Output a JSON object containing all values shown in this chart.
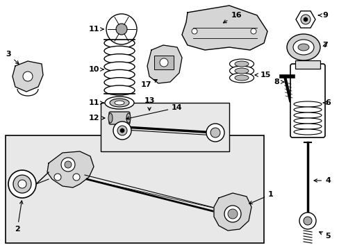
{
  "bg_color": "#ffffff",
  "box_fill": "#e8e8e8",
  "line_color": "#000000",
  "fig_w": 4.89,
  "fig_h": 3.6,
  "dpi": 100
}
